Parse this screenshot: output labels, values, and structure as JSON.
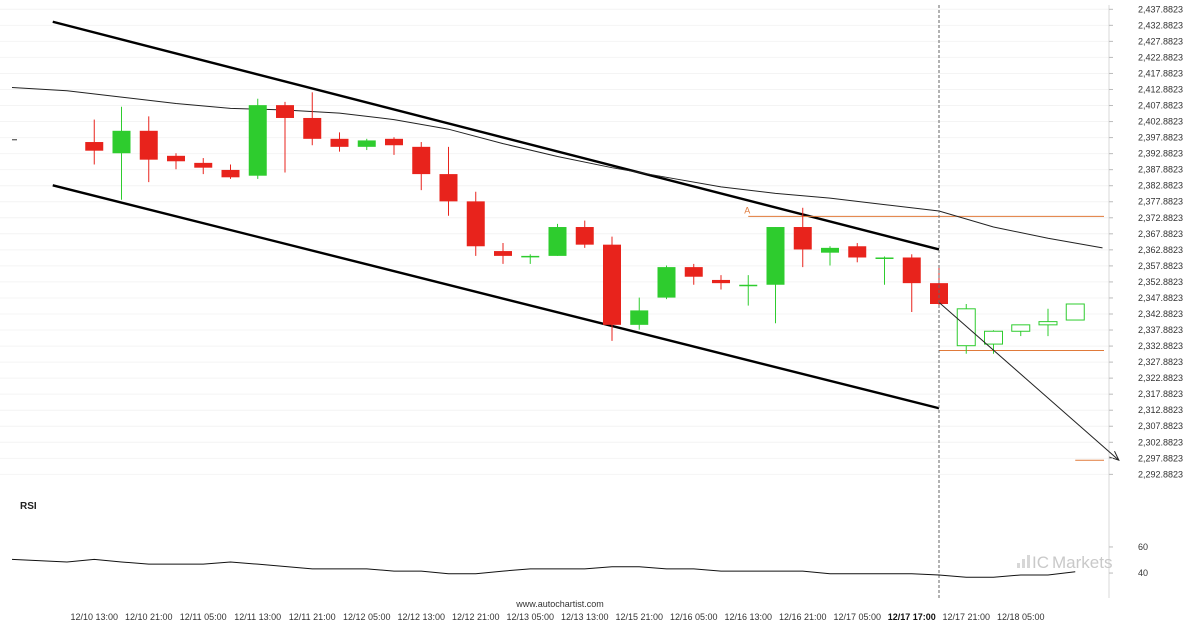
{
  "chart_data": {
    "type": "candlestick",
    "y_ticks": [
      "2,437.8823",
      "2,432.8823",
      "2,427.8823",
      "2,422.8823",
      "2,417.8823",
      "2,412.8823",
      "2,407.8823",
      "2,402.8823",
      "2,397.8823",
      "2,392.8823",
      "2,387.8823",
      "2,382.8823",
      "2,377.8823",
      "2,372.8823",
      "2,367.8823",
      "2,362.8823",
      "2,357.8823",
      "2,352.8823",
      "2,347.8823",
      "2,342.8823",
      "2,337.8823",
      "2,332.8823",
      "2,327.8823",
      "2,322.8823",
      "2,317.8823",
      "2,312.8823",
      "2,307.8823",
      "2,302.8823",
      "2,297.8823",
      "2,292.8823"
    ],
    "ylim": [
      2290.5,
      2438.6
    ],
    "x_labels": [
      {
        "i": 1,
        "text": "12/10 13:00",
        "bold": false
      },
      {
        "i": 3,
        "text": "12/10 21:00",
        "bold": false
      },
      {
        "i": 5,
        "text": "12/11 05:00",
        "bold": false
      },
      {
        "i": 7,
        "text": "12/11 13:00",
        "bold": false
      },
      {
        "i": 9,
        "text": "12/11 21:00",
        "bold": false
      },
      {
        "i": 11,
        "text": "12/12 05:00",
        "bold": false
      },
      {
        "i": 13,
        "text": "12/12 13:00",
        "bold": false
      },
      {
        "i": 15,
        "text": "12/12 21:00",
        "bold": false
      },
      {
        "i": 17,
        "text": "12/13 05:00",
        "bold": false
      },
      {
        "i": 19,
        "text": "12/13 13:00",
        "bold": false
      },
      {
        "i": 21,
        "text": "12/15 21:00",
        "bold": false
      },
      {
        "i": 23,
        "text": "12/16 05:00",
        "bold": false
      },
      {
        "i": 25,
        "text": "12/16 13:00",
        "bold": false
      },
      {
        "i": 27,
        "text": "12/16 21:00",
        "bold": false
      },
      {
        "i": 29,
        "text": "12/17 05:00",
        "bold": false
      },
      {
        "i": 31,
        "text": "12/17 17:00",
        "bold": true
      },
      {
        "i": 33,
        "text": "12/17 21:00",
        "bold": false
      },
      {
        "i": 35,
        "text": "12/18 05:00",
        "bold": false
      }
    ],
    "candles": [
      {
        "o": 2397.2,
        "h": 2397.5,
        "l": 2397.0,
        "c": 2397.2
      },
      {
        "o": 2396.5,
        "h": 2403.5,
        "l": 2389.5,
        "c": 2393.8
      },
      {
        "o": 2393.0,
        "h": 2407.5,
        "l": 2378.5,
        "c": 2400.0
      },
      {
        "o": 2400.0,
        "h": 2404.5,
        "l": 2384.0,
        "c": 2391.0
      },
      {
        "o": 2392.2,
        "h": 2393.0,
        "l": 2388.0,
        "c": 2390.5
      },
      {
        "o": 2390.0,
        "h": 2391.5,
        "l": 2386.5,
        "c": 2388.5
      },
      {
        "o": 2387.8,
        "h": 2389.5,
        "l": 2385.0,
        "c": 2385.5
      },
      {
        "o": 2386.0,
        "h": 2410.0,
        "l": 2385.0,
        "c": 2408.0
      },
      {
        "o": 2408.0,
        "h": 2409.0,
        "l": 2387.0,
        "c": 2404.0
      },
      {
        "o": 2404.0,
        "h": 2412.0,
        "l": 2395.5,
        "c": 2397.5
      },
      {
        "o": 2397.5,
        "h": 2399.5,
        "l": 2393.5,
        "c": 2395.0
      },
      {
        "o": 2395.0,
        "h": 2397.5,
        "l": 2394.0,
        "c": 2397.0
      },
      {
        "o": 2397.5,
        "h": 2398.0,
        "l": 2392.5,
        "c": 2395.5
      },
      {
        "o": 2395.0,
        "h": 2396.5,
        "l": 2381.5,
        "c": 2386.5
      },
      {
        "o": 2386.5,
        "h": 2395.0,
        "l": 2373.5,
        "c": 2378.0
      },
      {
        "o": 2378.0,
        "h": 2381.0,
        "l": 2361.0,
        "c": 2364.0
      },
      {
        "o": 2362.5,
        "h": 2365.0,
        "l": 2358.5,
        "c": 2361.0
      },
      {
        "o": 2361.0,
        "h": 2361.5,
        "l": 2358.5,
        "c": 2361.0
      },
      {
        "o": 2361.0,
        "h": 2371.0,
        "l": 2361.0,
        "c": 2370.0
      },
      {
        "o": 2370.0,
        "h": 2372.0,
        "l": 2363.5,
        "c": 2364.5
      },
      {
        "o": 2364.5,
        "h": 2367.0,
        "l": 2334.5,
        "c": 2339.5
      },
      {
        "o": 2339.5,
        "h": 2348.0,
        "l": 2338.0,
        "c": 2344.0
      },
      {
        "o": 2348.0,
        "h": 2358.0,
        "l": 2347.5,
        "c": 2357.5
      },
      {
        "o": 2357.5,
        "h": 2358.5,
        "l": 2352.0,
        "c": 2354.5
      },
      {
        "o": 2353.5,
        "h": 2355.0,
        "l": 2350.5,
        "c": 2352.5
      },
      {
        "o": 2352.0,
        "h": 2355.0,
        "l": 2345.5,
        "c": 2352.0
      },
      {
        "o": 2352.0,
        "h": 2370.0,
        "l": 2340.0,
        "c": 2370.0
      },
      {
        "o": 2370.0,
        "h": 2376.0,
        "l": 2357.5,
        "c": 2363.0
      },
      {
        "o": 2362.0,
        "h": 2364.0,
        "l": 2358.0,
        "c": 2363.5
      },
      {
        "o": 2364.0,
        "h": 2365.0,
        "l": 2359.0,
        "c": 2360.5
      },
      {
        "o": 2360.5,
        "h": 2360.8,
        "l": 2352.0,
        "c": 2360.5
      },
      {
        "o": 2360.5,
        "h": 2361.5,
        "l": 2343.5,
        "c": 2352.5
      },
      {
        "o": 2352.5,
        "h": 2357.5,
        "l": 2345.5,
        "c": 2346.0
      },
      {
        "o": 2333.0,
        "h": 2346.0,
        "l": 2330.5,
        "c": 2344.5,
        "hollow": true
      },
      {
        "o": 2333.5,
        "h": 2337.8,
        "l": 2330.5,
        "c": 2337.5,
        "hollow": true
      },
      {
        "o": 2337.5,
        "h": 2339.5,
        "l": 2336.0,
        "c": 2339.5,
        "hollow": true
      },
      {
        "o": 2339.5,
        "h": 2344.5,
        "l": 2336.0,
        "c": 2340.5,
        "hollow": true
      },
      {
        "o": 2341.0,
        "h": 2346.0,
        "l": 2341.0,
        "c": 2346.0,
        "hollow": true
      }
    ],
    "moving_average": [
      [
        -1,
        2413.5
      ],
      [
        0,
        2412.5
      ],
      [
        2,
        2410.5
      ],
      [
        4,
        2408.5
      ],
      [
        6,
        2407.0
      ],
      [
        8,
        2406.5
      ],
      [
        10,
        2405.5
      ],
      [
        12,
        2403.5
      ],
      [
        14,
        2400.5
      ],
      [
        16,
        2396.0
      ],
      [
        18,
        2392.0
      ],
      [
        20,
        2388.5
      ],
      [
        22,
        2385.5
      ],
      [
        24,
        2382.5
      ],
      [
        26,
        2380.5
      ],
      [
        28,
        2379.0
      ],
      [
        30,
        2377.0
      ],
      [
        32,
        2375.0
      ],
      [
        34,
        2370.0
      ],
      [
        36,
        2366.5
      ],
      [
        38,
        2363.5
      ]
    ],
    "channel_upper": [
      [
        -1,
        2434.0
      ],
      [
        32,
        2363.0
      ]
    ],
    "channel_lower": [
      [
        -1,
        2383.0
      ],
      [
        32,
        2313.5
      ]
    ],
    "resistance_level": {
      "value": 2373.3,
      "from": 25,
      "to": 40
    },
    "support_level": {
      "value": 2331.5,
      "from": 32,
      "to": 40
    },
    "forecast_arrow": {
      "from": [
        32,
        2346.5
      ],
      "to": [
        38.6,
        2297.3
      ]
    },
    "forecast_level": {
      "value": 2297.3,
      "from": 37,
      "to": 40
    },
    "current_time_index": 32,
    "pattern_marker": "A",
    "rsi": {
      "label": "RSI",
      "ticks": [
        60,
        40
      ],
      "ylim": [
        27,
        73
      ],
      "values": [
        [
          -1,
          50.5
        ],
        [
          0,
          48.5
        ],
        [
          1,
          50.5
        ],
        [
          2,
          48.5
        ],
        [
          3,
          46.8
        ],
        [
          4,
          46.8
        ],
        [
          5,
          46.8
        ],
        [
          6,
          48.5
        ],
        [
          7,
          46.8
        ],
        [
          8,
          45.0
        ],
        [
          9,
          43.2
        ],
        [
          10,
          43.2
        ],
        [
          11,
          43.2
        ],
        [
          12,
          41.5
        ],
        [
          13,
          41.5
        ],
        [
          14,
          39.5
        ],
        [
          15,
          39.5
        ],
        [
          16,
          41.5
        ],
        [
          17,
          43.2
        ],
        [
          18,
          43.2
        ],
        [
          19,
          43.2
        ],
        [
          20,
          44.8
        ],
        [
          21,
          44.8
        ],
        [
          22,
          43.2
        ],
        [
          23,
          43.2
        ],
        [
          24,
          41.5
        ],
        [
          25,
          41.5
        ],
        [
          26,
          41.5
        ],
        [
          27,
          41.5
        ],
        [
          28,
          39.5
        ],
        [
          29,
          39.5
        ],
        [
          30,
          39.5
        ],
        [
          31,
          39.5
        ],
        [
          32,
          38.5
        ],
        [
          33,
          36.8
        ],
        [
          34,
          36.8
        ],
        [
          35,
          38.5
        ],
        [
          36,
          38.5
        ],
        [
          37,
          41.0
        ]
      ]
    },
    "legend": "none"
  },
  "footer": {
    "source": "www.autochartist.com"
  },
  "brand": {
    "prefix": "IC",
    "suffix": "Markets"
  },
  "colors": {
    "bull": "#2ecc2e",
    "bear": "#e8231c",
    "level": "#e07a3a",
    "line": "#000000"
  }
}
